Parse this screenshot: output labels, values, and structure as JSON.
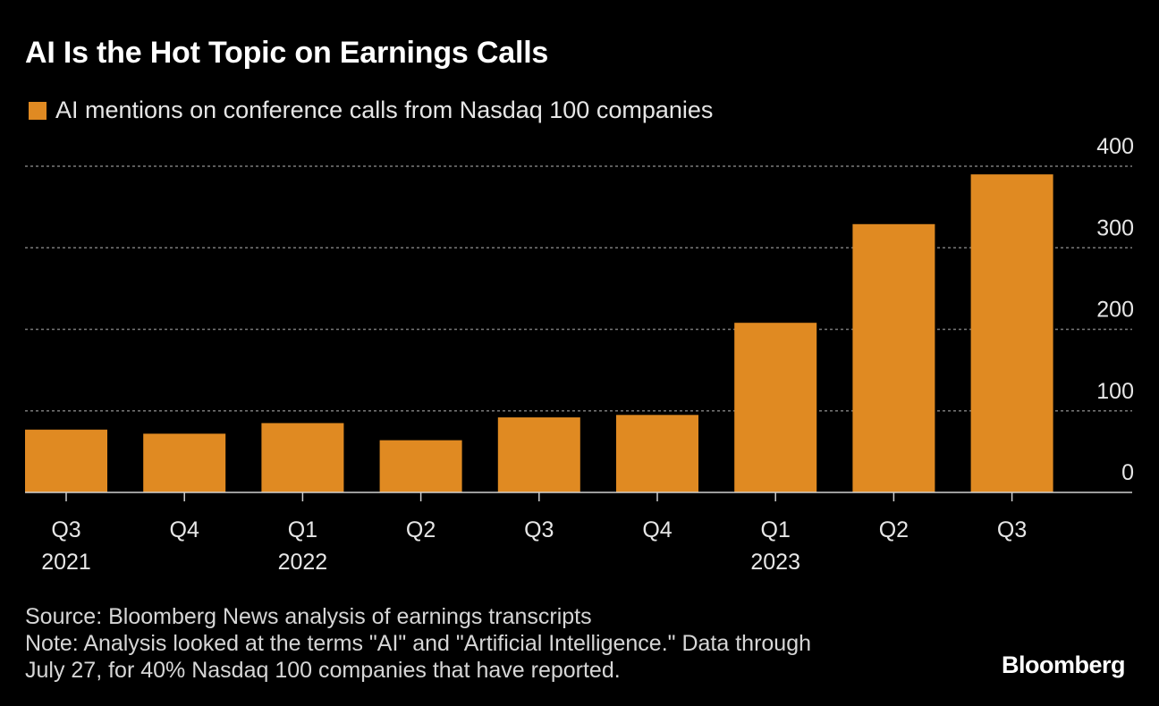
{
  "title": "AI Is the Hot Topic on Earnings Calls",
  "legend": {
    "label": "AI mentions on conference calls from Nasdaq 100 companies",
    "color": "#e08a22"
  },
  "source": "Source: Bloomberg News analysis of earnings transcripts",
  "note_line1": "Note: Analysis looked at the terms \"AI\" and \"Artificial Intelligence.\" Data through",
  "note_line2": "July 27, for 40% Nasdaq 100 companies that have reported.",
  "logo": "Bloomberg",
  "colors": {
    "background": "#000000",
    "bar": "#e08a22",
    "grid": "#7a7a7a",
    "text": "#ffffff"
  },
  "chart_data": {
    "type": "bar",
    "categories": [
      "Q3",
      "Q4",
      "Q1",
      "Q2",
      "Q3",
      "Q4",
      "Q1",
      "Q2",
      "Q3"
    ],
    "year_labels": [
      "2021",
      "",
      "2022",
      "",
      "",
      "",
      "2023",
      "",
      ""
    ],
    "series": [
      {
        "name": "AI mentions on conference calls from Nasdaq 100 companies",
        "values": [
          77,
          72,
          85,
          64,
          92,
          95,
          208,
          329,
          390
        ]
      }
    ],
    "ylim": [
      0,
      400
    ],
    "yticks": [
      "0",
      "100",
      "200",
      "300",
      "400"
    ],
    "yaxis_position": "right",
    "grid": true,
    "legend_position": "top-left"
  }
}
